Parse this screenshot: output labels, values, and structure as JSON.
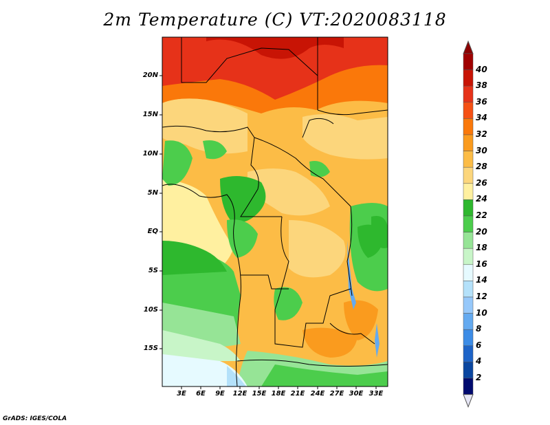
{
  "title": "2m Temperature (C) VT:2020083118",
  "footer": "GrADS: IGES/COLA",
  "y_axis_labels": [
    "20N",
    "15N",
    "10N",
    "5N",
    "EQ",
    "5S",
    "10S",
    "15S"
  ],
  "x_axis_labels": [
    "3E",
    "6E",
    "9E",
    "12E",
    "15E",
    "18E",
    "21E",
    "24E",
    "27E",
    "30E",
    "33E"
  ],
  "colorbar": {
    "labels": [
      "40",
      "38",
      "36",
      "34",
      "32",
      "30",
      "28",
      "26",
      "24",
      "22",
      "20",
      "18",
      "16",
      "14",
      "12",
      "10",
      "8",
      "6",
      "4",
      "2"
    ],
    "colors": [
      "#a00000",
      "#c81405",
      "#e63219",
      "#f55014",
      "#fa780a",
      "#fa9b1e",
      "#fcbc46",
      "#fcd67c",
      "#fff0a0",
      "#2eb82e",
      "#4ccd4c",
      "#96e496",
      "#c8f5c8",
      "#e6faff",
      "#b4e1fa",
      "#96c8fa",
      "#64aaf0",
      "#3c8ce6",
      "#1e64c8",
      "#0a46a0",
      "#000a6e"
    ],
    "top_arrow_color": "#8c0000",
    "bottom_arrow_color": "#e6e6f5"
  },
  "regions": [
    {
      "name": "sahara-hot",
      "color": "#e63219"
    },
    {
      "name": "sahel-warm",
      "color": "#fa9b1e"
    },
    {
      "name": "central-warm",
      "color": "#fcd67c"
    },
    {
      "name": "congo-green",
      "color": "#2eb82e"
    },
    {
      "name": "ocean-green",
      "color": "#4ccd4c"
    },
    {
      "name": "ocean-light",
      "color": "#96e496"
    },
    {
      "name": "ocean-pale",
      "color": "#e6faff"
    },
    {
      "name": "ocean-blue",
      "color": "#b4e1fa"
    }
  ]
}
